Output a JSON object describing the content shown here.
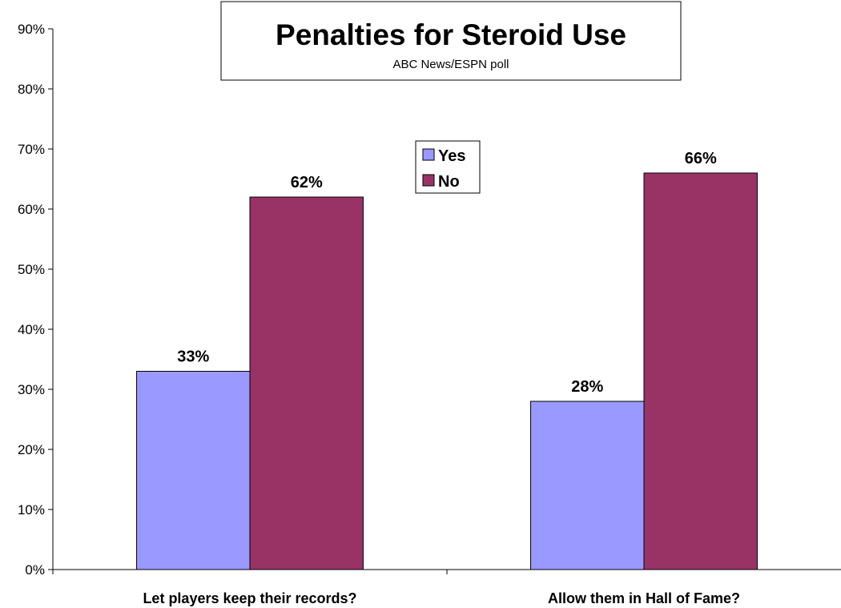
{
  "chart_data": {
    "type": "bar",
    "title": "Penalties for Steroid Use",
    "subtitle": "ABC News/ESPN poll",
    "categories": [
      "Let players keep their records?",
      "Allow them in Hall of Fame?"
    ],
    "series": [
      {
        "name": "Yes",
        "values": [
          33,
          28
        ],
        "labels": [
          "33%",
          "28%"
        ],
        "color": "#9999ff"
      },
      {
        "name": "No",
        "values": [
          62,
          66
        ],
        "labels": [
          "62%",
          "66%"
        ],
        "color": "#993366"
      }
    ],
    "ylim": [
      0,
      90
    ],
    "yticks": [
      "0%",
      "10%",
      "20%",
      "30%",
      "40%",
      "50%",
      "60%",
      "70%",
      "80%",
      "90%"
    ],
    "grid": false,
    "legend_position": "top-center"
  }
}
